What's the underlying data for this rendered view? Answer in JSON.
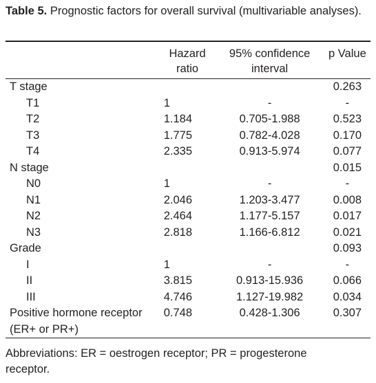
{
  "title": {
    "label": "Table 5.",
    "text": "Prognostic factors for overall survival (multivariable analyses)."
  },
  "header": [
    "",
    "Hazard ratio",
    "95% confidence interval",
    "p Value"
  ],
  "groups": [
    {
      "name": "T stage",
      "p": "0.263",
      "rows": [
        [
          "T1",
          "1",
          "-",
          "-"
        ],
        [
          "T2",
          "1.184",
          "0.705-1.988",
          "0.523"
        ],
        [
          "T3",
          "1.775",
          "0.782-4.028",
          "0.170"
        ],
        [
          "T4",
          "2.335",
          "0.913-5.974",
          "0.077"
        ]
      ]
    },
    {
      "name": "N stage",
      "p": "0.015",
      "rows": [
        [
          "N0",
          "1",
          "-",
          "-"
        ],
        [
          "N1",
          "2.046",
          "1.203-3.477",
          "0.008"
        ],
        [
          "N2",
          "2.464",
          "1.177-5.157",
          "0.017"
        ],
        [
          "N3",
          "2.818",
          "1.166-6.812",
          "0.021"
        ]
      ]
    },
    {
      "name": "Grade",
      "p": "0.093",
      "rows": [
        [
          "I",
          "1",
          "-",
          "-"
        ],
        [
          "II",
          "3.815",
          "0.913-15.936",
          "0.066"
        ],
        [
          "III",
          "4.746",
          "1.127-19.982",
          "0.034"
        ]
      ]
    },
    {
      "name": "Positive hormone receptor (ER+ or PR+)",
      "hr": "0.748",
      "ci": "0.428-1.306",
      "p": "0.307"
    }
  ],
  "footnote": "Abbreviations: ER = oestrogen receptor; PR = progesterone receptor."
}
